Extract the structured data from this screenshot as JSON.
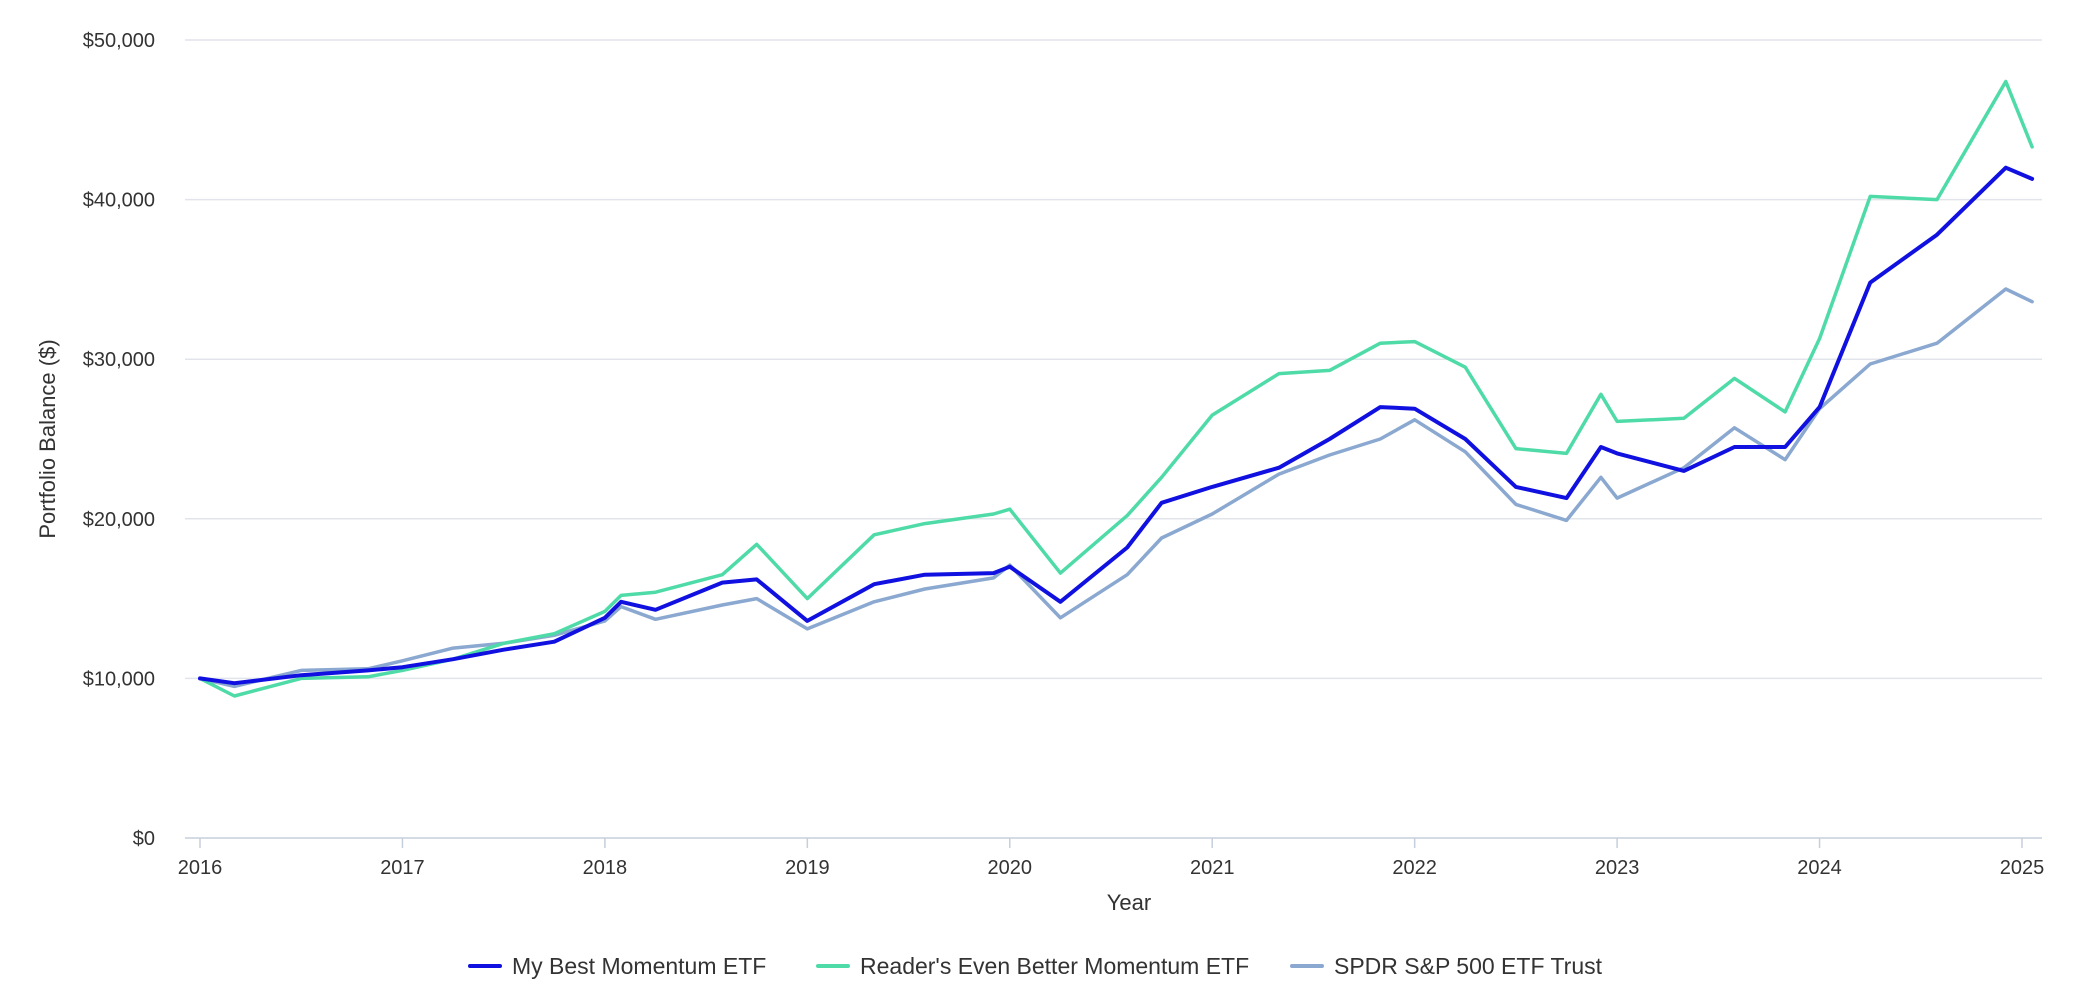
{
  "chart_data": {
    "type": "line",
    "xlabel": "Year",
    "ylabel": "Portfolio Balance ($)",
    "xlim": [
      2016,
      2025.05
    ],
    "ylim": [
      0,
      50000
    ],
    "x_ticks": [
      2016,
      2017,
      2018,
      2019,
      2020,
      2021,
      2022,
      2023,
      2024,
      2025
    ],
    "x_tick_labels": [
      "2016",
      "2017",
      "2018",
      "2019",
      "2020",
      "2021",
      "2022",
      "2023",
      "2024",
      "2025"
    ],
    "y_ticks": [
      0,
      10000,
      20000,
      30000,
      40000,
      50000
    ],
    "y_tick_labels": [
      "$0",
      "$10,000",
      "$20,000",
      "$30,000",
      "$40,000",
      "$50,000"
    ],
    "grid": true,
    "legend_position": "bottom-center",
    "x_keypoints": [
      2016.0,
      2016.17,
      2016.5,
      2016.83,
      2017.0,
      2017.25,
      2017.5,
      2017.75,
      2018.0,
      2018.08,
      2018.25,
      2018.58,
      2018.75,
      2019.0,
      2019.33,
      2019.58,
      2019.92,
      2020.0,
      2020.25,
      2020.58,
      2020.75,
      2021.0,
      2021.33,
      2021.58,
      2021.83,
      2022.0,
      2022.25,
      2022.5,
      2022.75,
      2022.92,
      2023.0,
      2023.33,
      2023.58,
      2023.83,
      2024.0,
      2024.25,
      2024.58,
      2024.92,
      2025.05
    ],
    "series": [
      {
        "name": "My Best Momentum ETF",
        "color": "#1010e0",
        "values": [
          10000,
          9700,
          10200,
          10500,
          10700,
          11200,
          11800,
          12300,
          13800,
          14800,
          14300,
          16000,
          16200,
          13600,
          15900,
          16500,
          16600,
          17000,
          14800,
          18200,
          21000,
          22000,
          23200,
          25000,
          27000,
          26900,
          25000,
          22000,
          21300,
          24500,
          24100,
          23000,
          24500,
          24500,
          27000,
          34800,
          37800,
          42000,
          41300
        ]
      },
      {
        "name": "Reader's Even Better Momentum ETF",
        "color": "#4fdba8",
        "values": [
          10000,
          8900,
          10000,
          10100,
          10500,
          11200,
          12200,
          12800,
          14200,
          15200,
          15400,
          16500,
          18400,
          15000,
          19000,
          19700,
          20300,
          20600,
          16600,
          20200,
          22600,
          26500,
          29100,
          29300,
          31000,
          31100,
          29500,
          24400,
          24100,
          27800,
          26100,
          26300,
          28800,
          26700,
          31300,
          40200,
          40000,
          47400,
          43300
        ]
      },
      {
        "name": "SPDR S&P 500 ETF Trust",
        "color": "#8aa8d0",
        "values": [
          10000,
          9500,
          10500,
          10600,
          11100,
          11900,
          12200,
          12700,
          13600,
          14500,
          13700,
          14600,
          15000,
          13100,
          14800,
          15600,
          16300,
          17100,
          13800,
          16500,
          18800,
          20300,
          22800,
          24000,
          25000,
          26200,
          24200,
          20900,
          19900,
          22600,
          21300,
          23200,
          25700,
          23700,
          26900,
          29700,
          31000,
          34400,
          33600
        ]
      }
    ]
  }
}
